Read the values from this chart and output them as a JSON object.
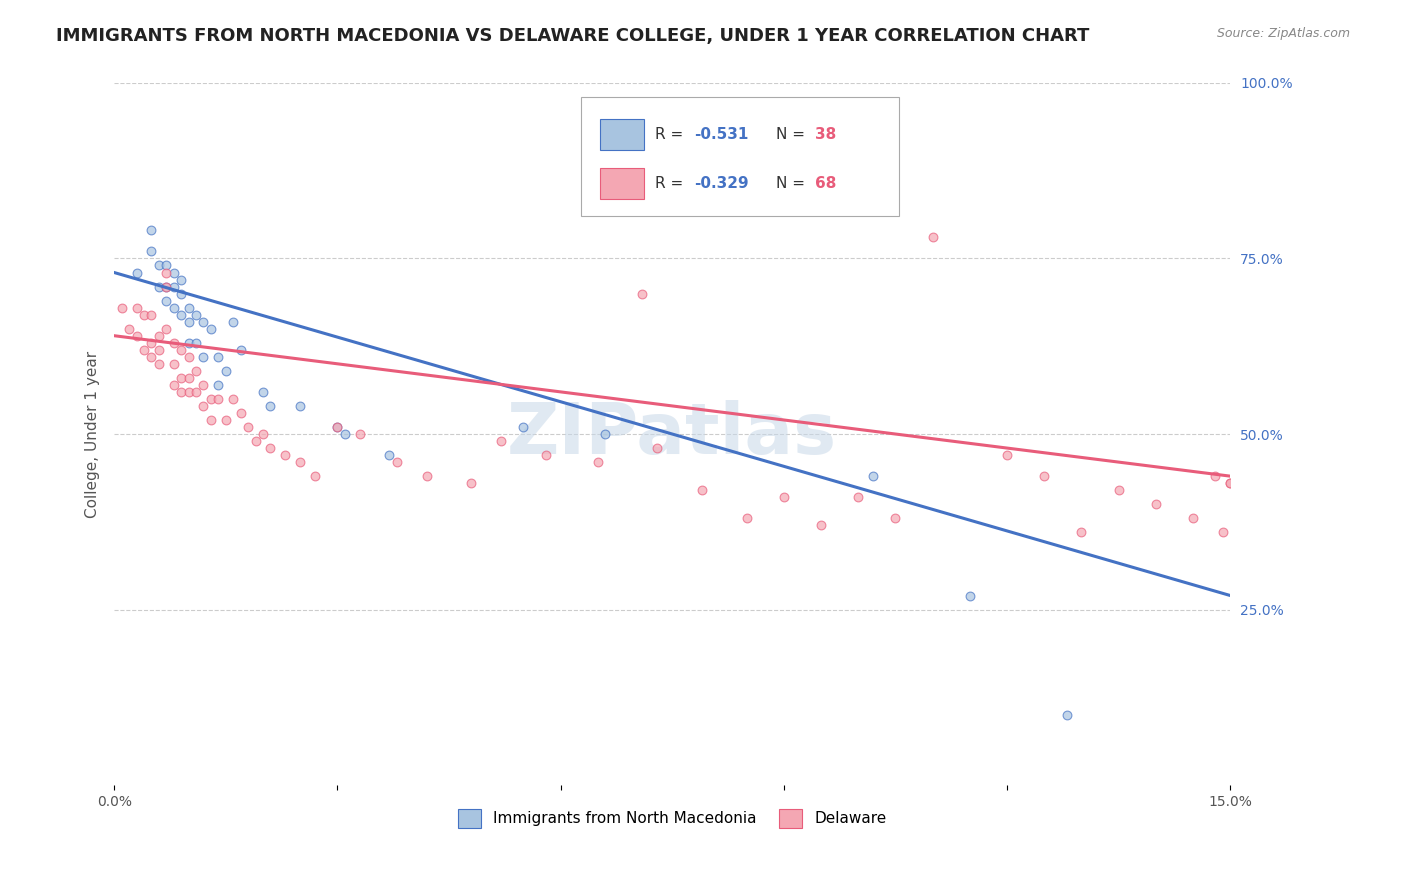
{
  "title": "IMMIGRANTS FROM NORTH MACEDONIA VS DELAWARE COLLEGE, UNDER 1 YEAR CORRELATION CHART",
  "source": "Source: ZipAtlas.com",
  "ylabel": "College, Under 1 year",
  "xlim": [
    0.0,
    0.15
  ],
  "ylim": [
    0.0,
    1.0
  ],
  "xtick_positions": [
    0.0,
    0.03,
    0.06,
    0.09,
    0.12,
    0.15
  ],
  "ytick_positions_right": [
    0.25,
    0.5,
    0.75,
    1.0
  ],
  "ytick_labels_right": [
    "25.0%",
    "50.0%",
    "75.0%",
    "100.0%"
  ],
  "blue_R": "-0.531",
  "blue_N": "38",
  "pink_R": "-0.329",
  "pink_N": "68",
  "blue_color": "#a8c4e0",
  "pink_color": "#f4a7b3",
  "blue_line_color": "#4472c4",
  "pink_line_color": "#e85c7a",
  "watermark": "ZIPatlas",
  "blue_scatter_x": [
    0.003,
    0.005,
    0.005,
    0.006,
    0.006,
    0.007,
    0.007,
    0.007,
    0.008,
    0.008,
    0.008,
    0.009,
    0.009,
    0.009,
    0.01,
    0.01,
    0.01,
    0.011,
    0.011,
    0.012,
    0.012,
    0.013,
    0.014,
    0.014,
    0.015,
    0.016,
    0.017,
    0.02,
    0.021,
    0.025,
    0.03,
    0.031,
    0.037,
    0.055,
    0.066,
    0.102,
    0.115,
    0.128
  ],
  "blue_scatter_y": [
    0.73,
    0.79,
    0.76,
    0.71,
    0.74,
    0.74,
    0.71,
    0.69,
    0.73,
    0.71,
    0.68,
    0.72,
    0.7,
    0.67,
    0.68,
    0.66,
    0.63,
    0.67,
    0.63,
    0.66,
    0.61,
    0.65,
    0.61,
    0.57,
    0.59,
    0.66,
    0.62,
    0.56,
    0.54,
    0.54,
    0.51,
    0.5,
    0.47,
    0.51,
    0.5,
    0.44,
    0.27,
    0.1
  ],
  "pink_scatter_x": [
    0.001,
    0.002,
    0.003,
    0.003,
    0.004,
    0.004,
    0.005,
    0.005,
    0.005,
    0.006,
    0.006,
    0.006,
    0.007,
    0.007,
    0.007,
    0.008,
    0.008,
    0.008,
    0.009,
    0.009,
    0.009,
    0.01,
    0.01,
    0.01,
    0.011,
    0.011,
    0.012,
    0.012,
    0.013,
    0.013,
    0.014,
    0.015,
    0.016,
    0.017,
    0.018,
    0.019,
    0.02,
    0.021,
    0.023,
    0.025,
    0.027,
    0.03,
    0.033,
    0.038,
    0.042,
    0.048,
    0.052,
    0.058,
    0.065,
    0.071,
    0.073,
    0.079,
    0.085,
    0.09,
    0.095,
    0.1,
    0.105,
    0.11,
    0.12,
    0.125,
    0.13,
    0.135,
    0.14,
    0.145,
    0.148,
    0.149,
    0.15,
    0.15
  ],
  "pink_scatter_y": [
    0.68,
    0.65,
    0.64,
    0.68,
    0.67,
    0.62,
    0.63,
    0.61,
    0.67,
    0.64,
    0.62,
    0.6,
    0.73,
    0.71,
    0.65,
    0.63,
    0.6,
    0.57,
    0.58,
    0.56,
    0.62,
    0.61,
    0.58,
    0.56,
    0.59,
    0.56,
    0.57,
    0.54,
    0.55,
    0.52,
    0.55,
    0.52,
    0.55,
    0.53,
    0.51,
    0.49,
    0.5,
    0.48,
    0.47,
    0.46,
    0.44,
    0.51,
    0.5,
    0.46,
    0.44,
    0.43,
    0.49,
    0.47,
    0.46,
    0.7,
    0.48,
    0.42,
    0.38,
    0.41,
    0.37,
    0.41,
    0.38,
    0.78,
    0.47,
    0.44,
    0.36,
    0.42,
    0.4,
    0.38,
    0.44,
    0.36,
    0.43,
    0.43
  ],
  "blue_line_x": [
    0.0,
    0.15
  ],
  "blue_line_y": [
    0.73,
    0.27
  ],
  "pink_line_x": [
    0.0,
    0.15
  ],
  "pink_line_y": [
    0.64,
    0.44
  ],
  "bg_color": "#ffffff",
  "grid_color": "#cccccc",
  "title_fontsize": 13,
  "axis_label_fontsize": 11,
  "tick_fontsize": 10,
  "scatter_size": 40,
  "scatter_alpha": 0.7,
  "legend_blue_label": "Immigrants from North Macedonia",
  "legend_pink_label": "Delaware"
}
